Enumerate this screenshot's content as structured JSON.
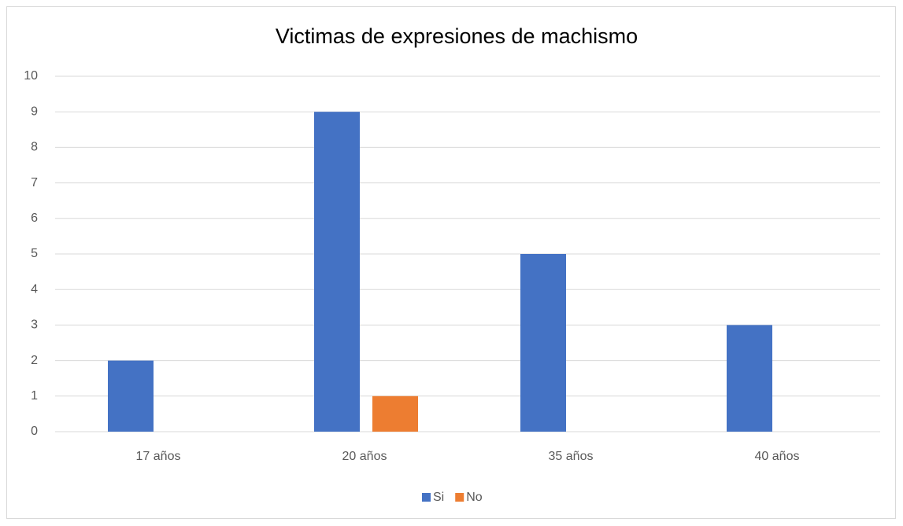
{
  "chart_data": {
    "type": "bar",
    "title": "Victimas de expresiones de machismo",
    "categories": [
      "17 años",
      "20 años",
      "35 años",
      "40 años"
    ],
    "series": [
      {
        "name": "Si",
        "color": "#4472c4",
        "values": [
          2,
          9,
          5,
          3
        ]
      },
      {
        "name": "No",
        "color": "#ed7d31",
        "values": [
          0,
          1,
          0,
          0
        ]
      }
    ],
    "ylim": [
      0,
      10
    ],
    "yticks": [
      0,
      1,
      2,
      3,
      4,
      5,
      6,
      7,
      8,
      9,
      10
    ],
    "grid": true,
    "legend": "bottom"
  }
}
